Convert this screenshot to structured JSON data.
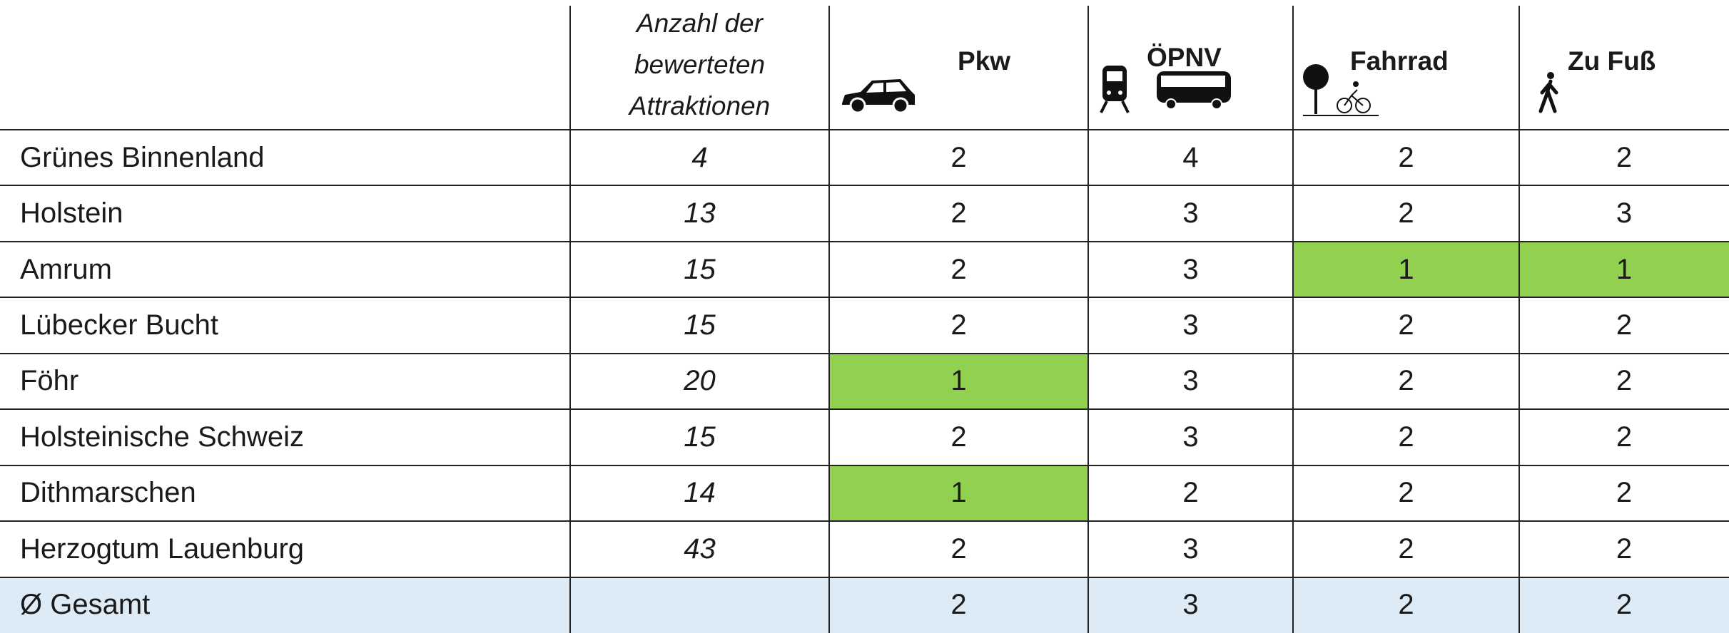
{
  "table": {
    "count_header": [
      "Anzahl der",
      "bewerteten",
      "Attraktionen"
    ],
    "modes": [
      "Pkw",
      "ÖPNV",
      "Fahrrad",
      "Zu Fuß"
    ],
    "rows": [
      {
        "region": "Grünes Binnenland",
        "count": 4,
        "values": [
          2,
          4,
          2,
          2
        ]
      },
      {
        "region": "Holstein",
        "count": 13,
        "values": [
          2,
          3,
          2,
          3
        ]
      },
      {
        "region": "Amrum",
        "count": 15,
        "values": [
          2,
          3,
          1,
          1
        ]
      },
      {
        "region": "Lübecker Bucht",
        "count": 15,
        "values": [
          2,
          3,
          2,
          2
        ]
      },
      {
        "region": "Föhr",
        "count": 20,
        "values": [
          1,
          3,
          2,
          2
        ]
      },
      {
        "region": "Holsteinische Schweiz",
        "count": 15,
        "values": [
          2,
          3,
          2,
          2
        ]
      },
      {
        "region": "Dithmarschen",
        "count": 14,
        "values": [
          1,
          2,
          2,
          2
        ]
      },
      {
        "region": "Herzogtum Lauenburg",
        "count": 43,
        "values": [
          2,
          3,
          2,
          2
        ]
      }
    ],
    "total": {
      "region": "Ø Gesamt",
      "values": [
        2,
        3,
        2,
        2
      ]
    },
    "highlight_cells": [
      [
        2,
        2
      ],
      [
        2,
        3
      ],
      [
        4,
        0
      ],
      [
        6,
        0
      ]
    ],
    "highlight_color": "#92d050",
    "total_color": "#ddebf7"
  }
}
